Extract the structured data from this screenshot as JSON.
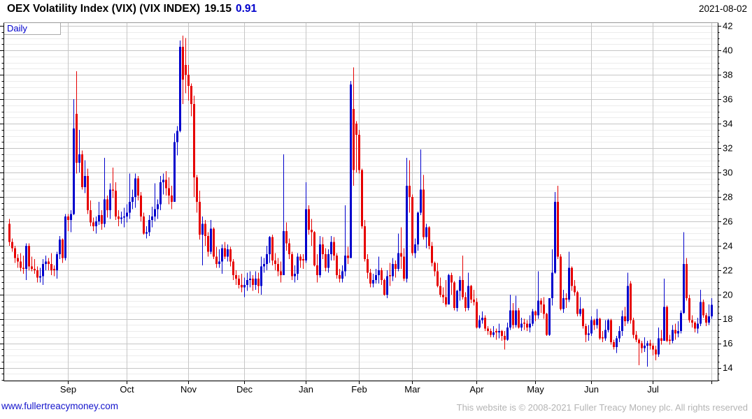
{
  "header": {
    "title": "OEX Volatility Index (VIX) (VIX INDEX)",
    "price": "19.15",
    "change": "0.91",
    "date": "2021-08-02"
  },
  "plot": {
    "frequency_label": "Daily"
  },
  "footer": {
    "site_link": "www.fullertreacymoney.com",
    "copyright": "This website is © 2008-2021 Fuller Treacy Money plc. All rights reserved"
  },
  "colors": {
    "up": "#0000cc",
    "down": "#e60000",
    "accent_blue": "#0000cc",
    "grid_major": "#c6c6c6",
    "grid_minor": "#ececec",
    "muted_text": "#b4b4b4"
  },
  "chart_data": {
    "type": "candlestick",
    "title": "OEX Volatility Index (VIX) (VIX INDEX)",
    "frequency": "Daily",
    "last_close": 19.15,
    "change": 0.91,
    "as_of_date": "2021-08-02",
    "ylim": [
      12.95,
      42.3
    ],
    "y_ticks": [
      14,
      16,
      18,
      20,
      22,
      24,
      26,
      28,
      30,
      32,
      34,
      36,
      38,
      40,
      42
    ],
    "y_minor_step": 0.5,
    "grid": true,
    "legend": "none",
    "x_months": [
      {
        "label": "Sep",
        "index": 21
      },
      {
        "label": "Oct",
        "index": 42
      },
      {
        "label": "Nov",
        "index": 64
      },
      {
        "label": "Dec",
        "index": 84
      },
      {
        "label": "Jan",
        "index": 106
      },
      {
        "label": "Feb",
        "index": 125
      },
      {
        "label": "Mar",
        "index": 144
      },
      {
        "label": "Apr",
        "index": 167
      },
      {
        "label": "May",
        "index": 188
      },
      {
        "label": "Jun",
        "index": 208
      },
      {
        "label": "Jul",
        "index": 230
      },
      {
        "label": "",
        "index": 251
      }
    ],
    "ohlc": [
      [
        25.8,
        26.2,
        24.0,
        24.3
      ],
      [
        24.3,
        24.6,
        23.5,
        23.8
      ],
      [
        23.8,
        24.0,
        22.6,
        23.0
      ],
      [
        23.0,
        23.3,
        22.2,
        22.7
      ],
      [
        22.7,
        23.4,
        21.9,
        22.2
      ],
      [
        22.2,
        23.2,
        21.7,
        22.1
      ],
      [
        22.1,
        24.2,
        21.2,
        24.0
      ],
      [
        24.0,
        24.2,
        22.0,
        22.3
      ],
      [
        22.3,
        23.1,
        21.9,
        22.1
      ],
      [
        22.1,
        22.9,
        21.7,
        22.0
      ],
      [
        22.0,
        22.3,
        21.0,
        21.4
      ],
      [
        21.4,
        22.2,
        21.0,
        21.5
      ],
      [
        21.5,
        22.9,
        20.8,
        22.5
      ],
      [
        22.5,
        23.2,
        22.0,
        22.7
      ],
      [
        22.7,
        23.0,
        22.0,
        22.5
      ],
      [
        22.5,
        23.4,
        21.6,
        22.0
      ],
      [
        22.1,
        22.4,
        21.5,
        22.0
      ],
      [
        22.0,
        23.5,
        21.3,
        23.3
      ],
      [
        23.3,
        24.8,
        22.9,
        24.5
      ],
      [
        24.5,
        24.6,
        22.6,
        23.0
      ],
      [
        23.0,
        26.6,
        22.8,
        26.4
      ],
      [
        26.4,
        26.6,
        25.2,
        26.1
      ],
      [
        26.1,
        26.9,
        25.1,
        26.6
      ],
      [
        26.6,
        36.0,
        26.5,
        33.6
      ],
      [
        34.8,
        38.3,
        29.9,
        30.8
      ],
      [
        30.8,
        33.5,
        30.0,
        31.5
      ],
      [
        31.5,
        31.8,
        28.6,
        28.8
      ],
      [
        28.8,
        31.0,
        28.3,
        29.7
      ],
      [
        29.7,
        30.3,
        26.6,
        26.9
      ],
      [
        26.9,
        27.7,
        25.6,
        25.9
      ],
      [
        25.9,
        26.3,
        25.2,
        25.6
      ],
      [
        25.6,
        26.4,
        25.0,
        26.0
      ],
      [
        26.0,
        27.6,
        25.7,
        26.5
      ],
      [
        26.5,
        26.9,
        25.3,
        25.8
      ],
      [
        25.8,
        31.2,
        25.5,
        27.8
      ],
      [
        27.8,
        28.1,
        26.3,
        26.9
      ],
      [
        26.9,
        29.1,
        26.2,
        28.6
      ],
      [
        28.6,
        30.4,
        27.9,
        28.5
      ],
      [
        28.5,
        29.2,
        26.1,
        26.4
      ],
      [
        26.4,
        26.9,
        25.6,
        26.2
      ],
      [
        26.2,
        26.8,
        25.8,
        26.3
      ],
      [
        26.3,
        27.1,
        25.5,
        26.4
      ],
      [
        26.4,
        27.4,
        25.9,
        26.7
      ],
      [
        26.7,
        29.9,
        26.2,
        27.6
      ],
      [
        27.6,
        28.6,
        27.0,
        28.0
      ],
      [
        28.0,
        29.9,
        27.1,
        29.5
      ],
      [
        29.5,
        29.7,
        27.7,
        28.1
      ],
      [
        28.1,
        28.4,
        26.0,
        26.4
      ],
      [
        26.4,
        26.7,
        24.9,
        25.0
      ],
      [
        25.0,
        25.6,
        24.6,
        25.1
      ],
      [
        25.1,
        26.5,
        24.8,
        26.1
      ],
      [
        26.1,
        27.2,
        25.5,
        26.4
      ],
      [
        26.4,
        29.1,
        26.0,
        27.0
      ],
      [
        27.0,
        27.8,
        26.2,
        27.4
      ],
      [
        27.4,
        29.7,
        26.9,
        29.2
      ],
      [
        29.2,
        29.9,
        28.2,
        29.4
      ],
      [
        29.4,
        30.1,
        28.1,
        28.7
      ],
      [
        28.7,
        29.6,
        27.4,
        28.1
      ],
      [
        28.1,
        28.9,
        27.0,
        27.6
      ],
      [
        27.6,
        33.2,
        27.6,
        32.5
      ],
      [
        32.5,
        33.8,
        31.4,
        33.4
      ],
      [
        33.4,
        40.8,
        33.3,
        40.3
      ],
      [
        40.3,
        41.2,
        35.6,
        37.6
      ],
      [
        38.8,
        41.0,
        36.5,
        38.0
      ],
      [
        38.0,
        38.8,
        35.9,
        37.1
      ],
      [
        37.1,
        37.3,
        34.6,
        35.6
      ],
      [
        35.6,
        36.3,
        28.0,
        29.6
      ],
      [
        29.6,
        29.8,
        26.7,
        27.6
      ],
      [
        27.6,
        28.5,
        24.5,
        24.9
      ],
      [
        24.9,
        26.4,
        22.4,
        25.8
      ],
      [
        25.8,
        26.1,
        24.0,
        24.8
      ],
      [
        24.8,
        25.1,
        23.1,
        23.5
      ],
      [
        23.5,
        26.1,
        23.3,
        25.4
      ],
      [
        25.4,
        25.5,
        22.9,
        23.1
      ],
      [
        23.1,
        23.9,
        22.2,
        22.5
      ],
      [
        22.5,
        23.7,
        22.2,
        22.7
      ],
      [
        22.7,
        24.1,
        21.7,
        23.8
      ],
      [
        23.8,
        24.3,
        22.9,
        23.1
      ],
      [
        23.1,
        24.1,
        22.7,
        23.7
      ],
      [
        23.7,
        23.9,
        22.3,
        22.7
      ],
      [
        22.7,
        22.9,
        21.2,
        21.6
      ],
      [
        21.6,
        22.0,
        20.8,
        21.3
      ],
      [
        21.3,
        21.6,
        20.5,
        20.8
      ],
      [
        20.8,
        21.7,
        20.2,
        20.6
      ],
      [
        20.6,
        21.4,
        19.8,
        20.8
      ],
      [
        20.8,
        21.8,
        20.3,
        21.2
      ],
      [
        21.2,
        21.9,
        20.6,
        21.3
      ],
      [
        21.3,
        21.6,
        20.3,
        20.8
      ],
      [
        20.8,
        21.9,
        20.4,
        21.3
      ],
      [
        21.3,
        21.8,
        20.1,
        20.7
      ],
      [
        20.7,
        23.1,
        20.0,
        22.3
      ],
      [
        22.3,
        23.0,
        21.8,
        22.5
      ],
      [
        22.5,
        24.0,
        22.0,
        23.3
      ],
      [
        23.3,
        24.8,
        22.6,
        24.7
      ],
      [
        24.7,
        24.9,
        22.4,
        22.8
      ],
      [
        22.8,
        23.4,
        22.0,
        22.5
      ],
      [
        22.5,
        23.0,
        21.5,
        21.9
      ],
      [
        21.9,
        22.7,
        21.0,
        21.6
      ],
      [
        21.6,
        31.5,
        21.6,
        25.2
      ],
      [
        25.2,
        25.9,
        23.6,
        24.2
      ],
      [
        24.2,
        24.6,
        22.9,
        23.3
      ],
      [
        23.3,
        23.5,
        21.2,
        21.5
      ],
      [
        21.5,
        22.4,
        21.0,
        21.7
      ],
      [
        21.7,
        23.4,
        21.2,
        23.1
      ],
      [
        23.1,
        23.3,
        22.2,
        22.8
      ],
      [
        22.9,
        23.3,
        22.1,
        22.8
      ],
      [
        22.8,
        29.2,
        22.6,
        27.0
      ],
      [
        27.0,
        27.3,
        24.9,
        25.3
      ],
      [
        25.3,
        26.2,
        24.0,
        25.1
      ],
      [
        25.1,
        25.2,
        22.3,
        22.4
      ],
      [
        22.4,
        23.3,
        21.0,
        21.6
      ],
      [
        21.6,
        24.8,
        21.4,
        24.1
      ],
      [
        24.1,
        24.7,
        22.9,
        23.3
      ],
      [
        23.3,
        23.8,
        21.9,
        22.2
      ],
      [
        22.2,
        23.7,
        21.8,
        23.3
      ],
      [
        23.3,
        24.8,
        22.8,
        24.3
      ],
      [
        24.3,
        24.7,
        22.8,
        23.2
      ],
      [
        23.2,
        23.4,
        21.3,
        21.6
      ],
      [
        21.6,
        22.1,
        21.0,
        21.3
      ],
      [
        21.3,
        22.4,
        21.0,
        21.9
      ],
      [
        21.9,
        27.3,
        21.5,
        23.2
      ],
      [
        23.2,
        23.9,
        22.5,
        23.0
      ],
      [
        23.0,
        37.5,
        23.0,
        37.2
      ],
      [
        35.2,
        38.6,
        28.9,
        30.2
      ],
      [
        34.0,
        34.2,
        30.0,
        33.1
      ],
      [
        33.1,
        33.5,
        29.9,
        30.2
      ],
      [
        30.2,
        30.3,
        25.4,
        25.6
      ],
      [
        25.6,
        26.1,
        22.7,
        22.9
      ],
      [
        22.9,
        23.3,
        21.3,
        21.8
      ],
      [
        21.8,
        22.1,
        20.6,
        20.9
      ],
      [
        20.9,
        21.7,
        20.6,
        21.2
      ],
      [
        21.2,
        22.1,
        20.9,
        21.6
      ],
      [
        21.6,
        23.1,
        20.9,
        22.0
      ],
      [
        22.0,
        22.2,
        20.8,
        21.2
      ],
      [
        21.2,
        21.3,
        19.9,
        20.0
      ],
      [
        20.0,
        22.0,
        19.7,
        21.5
      ],
      [
        21.6,
        22.6,
        20.7,
        21.5
      ],
      [
        21.5,
        23.0,
        21.1,
        22.5
      ],
      [
        22.5,
        22.8,
        21.4,
        22.1
      ],
      [
        22.1,
        25.0,
        21.9,
        23.4
      ],
      [
        23.4,
        25.5,
        22.1,
        23.1
      ],
      [
        23.1,
        23.8,
        21.1,
        21.3
      ],
      [
        21.3,
        31.2,
        21.0,
        28.9
      ],
      [
        28.9,
        31.0,
        26.7,
        28.0
      ],
      [
        28.0,
        28.2,
        23.2,
        23.4
      ],
      [
        23.4,
        24.6,
        23.0,
        24.1
      ],
      [
        24.1,
        26.8,
        23.6,
        26.7
      ],
      [
        26.7,
        31.9,
        26.5,
        28.6
      ],
      [
        28.6,
        29.8,
        24.5,
        24.7
      ],
      [
        24.7,
        25.8,
        23.8,
        25.5
      ],
      [
        25.5,
        25.6,
        23.7,
        24.0
      ],
      [
        24.0,
        24.3,
        22.3,
        22.6
      ],
      [
        22.6,
        22.7,
        21.5,
        21.9
      ],
      [
        21.9,
        22.6,
        20.6,
        20.7
      ],
      [
        20.7,
        21.4,
        19.8,
        20.0
      ],
      [
        20.0,
        20.6,
        19.3,
        19.8
      ],
      [
        19.8,
        21.2,
        19.0,
        19.2
      ],
      [
        19.2,
        21.7,
        19.2,
        21.6
      ],
      [
        21.6,
        21.8,
        20.0,
        21.0
      ],
      [
        21.0,
        21.1,
        18.7,
        18.9
      ],
      [
        18.9,
        20.4,
        18.6,
        20.3
      ],
      [
        20.3,
        21.5,
        19.5,
        21.2
      ],
      [
        21.2,
        23.2,
        19.6,
        19.8
      ],
      [
        19.8,
        20.2,
        18.6,
        18.9
      ],
      [
        18.9,
        21.8,
        18.7,
        20.7
      ],
      [
        20.7,
        20.8,
        19.3,
        19.6
      ],
      [
        19.6,
        20.4,
        19.1,
        19.4
      ],
      [
        19.4,
        19.7,
        17.2,
        17.3
      ],
      [
        17.3,
        18.3,
        17.2,
        17.9
      ],
      [
        17.9,
        18.6,
        17.6,
        18.1
      ],
      [
        18.1,
        18.3,
        17.0,
        17.2
      ],
      [
        17.2,
        17.4,
        16.7,
        17.0
      ],
      [
        17.0,
        17.2,
        16.5,
        16.7
      ],
      [
        16.7,
        17.4,
        16.5,
        16.9
      ],
      [
        17.0,
        17.2,
        16.3,
        16.9
      ],
      [
        16.9,
        17.6,
        16.4,
        17.0
      ],
      [
        17.0,
        17.1,
        16.2,
        16.6
      ],
      [
        16.6,
        17.0,
        15.5,
        16.3
      ],
      [
        16.3,
        17.7,
        16.2,
        17.3
      ],
      [
        17.3,
        20.0,
        17.1,
        18.7
      ],
      [
        18.7,
        19.3,
        17.2,
        17.5
      ],
      [
        17.5,
        19.9,
        17.3,
        18.7
      ],
      [
        18.7,
        18.9,
        17.2,
        17.3
      ],
      [
        17.3,
        18.1,
        17.0,
        17.6
      ],
      [
        17.7,
        18.0,
        17.1,
        17.6
      ],
      [
        17.6,
        17.9,
        17.0,
        17.3
      ],
      [
        17.3,
        18.3,
        16.9,
        17.6
      ],
      [
        17.6,
        18.8,
        17.4,
        18.6
      ],
      [
        18.6,
        18.7,
        17.8,
        18.3
      ],
      [
        18.3,
        21.9,
        18.0,
        19.5
      ],
      [
        19.5,
        19.7,
        18.5,
        19.2
      ],
      [
        19.2,
        19.8,
        18.0,
        18.4
      ],
      [
        18.4,
        18.5,
        16.6,
        16.7
      ],
      [
        16.7,
        19.7,
        16.6,
        19.7
      ],
      [
        19.7,
        23.7,
        19.1,
        21.8
      ],
      [
        21.8,
        28.4,
        21.7,
        27.6
      ],
      [
        27.6,
        28.9,
        22.9,
        23.1
      ],
      [
        23.1,
        23.3,
        18.7,
        18.8
      ],
      [
        18.8,
        20.4,
        18.5,
        19.7
      ],
      [
        19.7,
        20.1,
        18.9,
        19.6
      ],
      [
        19.6,
        23.5,
        19.4,
        22.2
      ],
      [
        22.2,
        22.3,
        20.3,
        20.7
      ],
      [
        20.7,
        21.2,
        19.9,
        20.2
      ],
      [
        20.2,
        20.3,
        18.2,
        18.4
      ],
      [
        18.4,
        19.8,
        18.2,
        18.8
      ],
      [
        18.8,
        18.9,
        17.2,
        17.4
      ],
      [
        17.4,
        17.6,
        16.1,
        16.7
      ],
      [
        16.7,
        17.5,
        16.2,
        16.8
      ],
      [
        16.8,
        18.2,
        16.6,
        17.9
      ],
      [
        17.9,
        18.0,
        17.1,
        17.5
      ],
      [
        17.5,
        18.8,
        17.2,
        18.0
      ],
      [
        18.0,
        18.1,
        16.3,
        16.4
      ],
      [
        16.5,
        17.0,
        16.1,
        16.4
      ],
      [
        16.4,
        17.9,
        16.2,
        17.1
      ],
      [
        17.1,
        18.0,
        16.9,
        17.9
      ],
      [
        17.9,
        18.0,
        15.9,
        16.1
      ],
      [
        16.1,
        16.3,
        15.5,
        15.7
      ],
      [
        15.7,
        16.6,
        15.2,
        16.4
      ],
      [
        16.4,
        17.4,
        16.1,
        17.0
      ],
      [
        17.0,
        18.7,
        16.6,
        18.2
      ],
      [
        18.2,
        19.0,
        17.4,
        17.8
      ],
      [
        17.8,
        21.8,
        17.6,
        20.7
      ],
      [
        20.9,
        21.1,
        17.6,
        17.9
      ],
      [
        17.9,
        18.1,
        16.4,
        16.7
      ],
      [
        16.7,
        17.0,
        16.1,
        16.3
      ],
      [
        16.3,
        16.4,
        14.2,
        16.0
      ],
      [
        16.0,
        16.2,
        15.2,
        15.6
      ],
      [
        15.6,
        16.5,
        15.3,
        15.8
      ],
      [
        15.8,
        16.2,
        14.1,
        16.0
      ],
      [
        16.0,
        16.3,
        15.5,
        15.8
      ],
      [
        15.8,
        16.0,
        15.0,
        15.5
      ],
      [
        15.5,
        15.8,
        14.6,
        15.1
      ],
      [
        15.1,
        17.3,
        14.9,
        16.4
      ],
      [
        16.4,
        17.1,
        15.9,
        16.2
      ],
      [
        16.2,
        21.3,
        16.2,
        19.0
      ],
      [
        19.0,
        19.1,
        16.1,
        16.2
      ],
      [
        16.3,
        16.7,
        15.9,
        16.2
      ],
      [
        16.2,
        17.5,
        16.0,
        17.1
      ],
      [
        17.1,
        17.6,
        16.3,
        16.8
      ],
      [
        16.8,
        17.8,
        16.5,
        17.0
      ],
      [
        17.0,
        18.7,
        16.8,
        18.5
      ],
      [
        18.5,
        25.1,
        18.4,
        22.5
      ],
      [
        22.5,
        23.0,
        19.5,
        19.7
      ],
      [
        19.7,
        20.0,
        17.7,
        17.9
      ],
      [
        17.9,
        18.3,
        17.3,
        17.7
      ],
      [
        17.7,
        17.8,
        16.9,
        17.2
      ],
      [
        17.2,
        18.1,
        16.8,
        17.6
      ],
      [
        17.6,
        20.4,
        17.4,
        19.4
      ],
      [
        19.4,
        19.6,
        18.1,
        18.3
      ],
      [
        18.3,
        18.5,
        17.4,
        17.7
      ],
      [
        17.7,
        19.2,
        17.5,
        18.2
      ],
      [
        18.2,
        19.7,
        18.0,
        19.15
      ]
    ]
  }
}
